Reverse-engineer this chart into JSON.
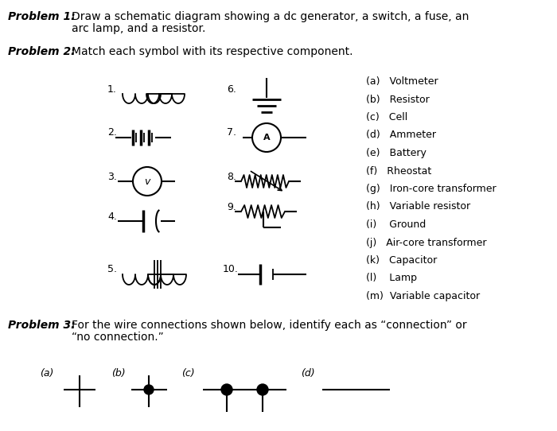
{
  "bg_color": "#ffffff",
  "problem1_label": "Problem 1:",
  "problem1_text1": "Draw a schematic diagram showing a dc generator, a switch, a fuse, an",
  "problem1_text2": "arc lamp, and a resistor.",
  "problem2_label": "Problem 2:",
  "problem2_text": "Match each symbol with its respective component.",
  "problem3_label": "Problem 3:",
  "problem3_text1": "For the wire connections shown below, identify each as “connection” or",
  "problem3_text2": "“no connection.”",
  "legend": [
    "(a)   Voltmeter",
    "(b)   Resistor",
    "(c)   Cell",
    "(d)   Ammeter",
    "(e)   Battery",
    "(f)   Rheostat",
    "(g)   Iron-core transformer",
    "(h)   Variable resistor",
    "(i)    Ground",
    "(j)   Air-core transformer",
    "(k)   Capacitor",
    "(l)    Lamp",
    "(m)  Variable capacitor"
  ]
}
